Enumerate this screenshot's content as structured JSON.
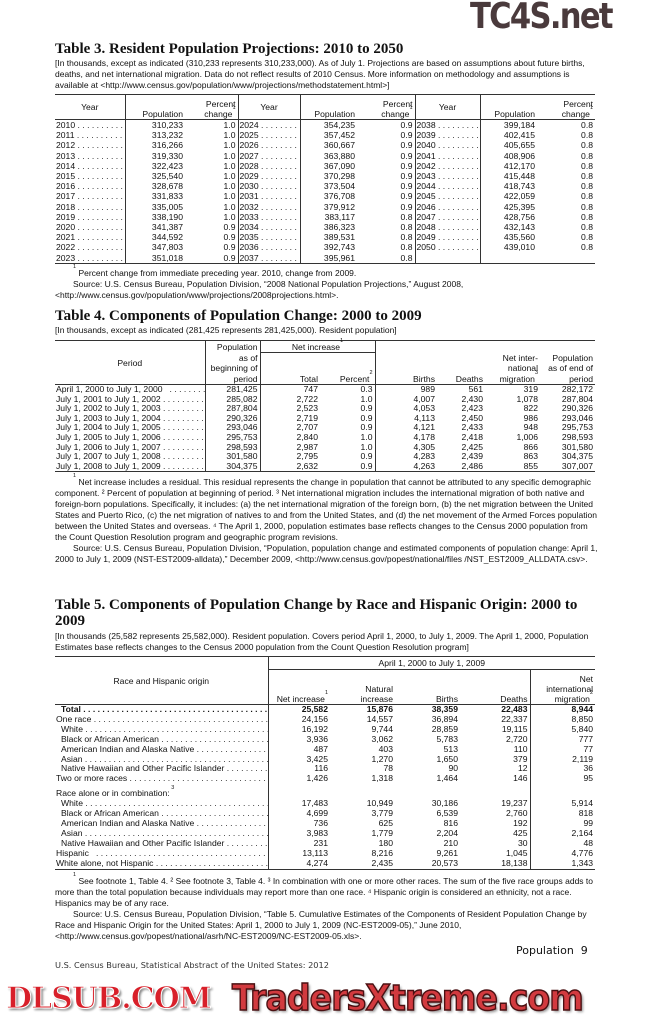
{
  "watermarks": {
    "top": "TC4S.net",
    "middle": "DLSUB.COM",
    "bottom": "TradersXtreme.com"
  },
  "table3": {
    "title": "Table 3. Resident Population Projections: 2010 to 2050",
    "subtitle": "[In thousands, except as indicated (310,233 represents 310,233,000). As of July 1. Projections are based on assumptions about future births, deaths, and net international migration. Data do not reflect results of 2010 Census. More information on methodology and assumptions is available at <http://www.census.gov/population/www/projections/methodstatement.html>]",
    "headers": {
      "year": "Year",
      "population": "Population",
      "percent": "Percent change",
      "fn": "1"
    },
    "rows": [
      [
        "2010",
        "310,233",
        "1.0",
        "2024",
        "354,235",
        "0.9",
        "2038",
        "399,184",
        "0.8"
      ],
      [
        "2011",
        "313,232",
        "1.0",
        "2025",
        "357,452",
        "0.9",
        "2039",
        "402,415",
        "0.8"
      ],
      [
        "2012",
        "316,266",
        "1.0",
        "2026",
        "360,667",
        "0.9",
        "2040",
        "405,655",
        "0.8"
      ],
      [
        "2013",
        "319,330",
        "1.0",
        "2027",
        "363,880",
        "0.9",
        "2041",
        "408,906",
        "0.8"
      ],
      [
        "2014",
        "322,423",
        "1.0",
        "2028",
        "367,090",
        "0.9",
        "2042",
        "412,170",
        "0.8"
      ],
      [
        "2015",
        "325,540",
        "1.0",
        "2029",
        "370,298",
        "0.9",
        "2043",
        "415,448",
        "0.8"
      ],
      [
        "2016",
        "328,678",
        "1.0",
        "2030",
        "373,504",
        "0.9",
        "2044",
        "418,743",
        "0.8"
      ],
      [
        "2017",
        "331,833",
        "1.0",
        "2031",
        "376,708",
        "0.9",
        "2045",
        "422,059",
        "0.8"
      ],
      [
        "2018",
        "335,005",
        "1.0",
        "2032",
        "379,912",
        "0.9",
        "2046",
        "425,395",
        "0.8"
      ],
      [
        "2019",
        "338,190",
        "1.0",
        "2033",
        "383,117",
        "0.8",
        "2047",
        "428,756",
        "0.8"
      ],
      [
        "2020",
        "341,387",
        "0.9",
        "2034",
        "386,323",
        "0.8",
        "2048",
        "432,143",
        "0.8"
      ],
      [
        "2021",
        "344,592",
        "0.9",
        "2035",
        "389,531",
        "0.8",
        "2049",
        "435,560",
        "0.8"
      ],
      [
        "2022",
        "347,803",
        "0.9",
        "2036",
        "392,743",
        "0.8",
        "2050",
        "439,010",
        "0.8"
      ],
      [
        "2023",
        "351,018",
        "0.9",
        "2037",
        "395,961",
        "0.8",
        "",
        "",
        ""
      ]
    ],
    "footnote": "Percent change from immediate preceding year. 2010, change from 2009.",
    "source": "Source: U.S. Census Bureau, Population Division, “2008 National Population Projections,” August 2008, <http://www.census.gov/population/www/projections/2008projections.html>."
  },
  "table4": {
    "title": "Table 4. Components of Population Change: 2000 to 2009",
    "subtitle": "[In thousands, except as indicated (281,425 represents 281,425,000). Resident population]",
    "headers": {
      "period": "Period",
      "pop_begin": "Population as of beginning of period",
      "net_increase": "Net increase",
      "total": "Total",
      "percent": "Percent",
      "births": "Births",
      "deaths": "Deaths",
      "net_migration": "Net inter- national migration",
      "pop_end": "Population as of end of period"
    },
    "rows": [
      [
        "April 1, 2000 to July 1, 2000",
        "281,425",
        "747",
        "0.3",
        "989",
        "561",
        "319",
        "282,172"
      ],
      [
        "July 1, 2001 to July 1, 2002",
        "285,082",
        "2,722",
        "1.0",
        "4,007",
        "2,430",
        "1,078",
        "287,804"
      ],
      [
        "July 1, 2002 to July 1, 2003",
        "287,804",
        "2,523",
        "0.9",
        "4,053",
        "2,423",
        "822",
        "290,326"
      ],
      [
        "July 1, 2003 to July 1, 2004",
        "290,326",
        "2,719",
        "0.9",
        "4,113",
        "2,450",
        "986",
        "293,046"
      ],
      [
        "July 1, 2004 to July 1, 2005",
        "293,046",
        "2,707",
        "0.9",
        "4,121",
        "2,433",
        "948",
        "295,753"
      ],
      [
        "July 1, 2005 to July 1, 2006",
        "295,753",
        "2,840",
        "1.0",
        "4,178",
        "2,418",
        "1,006",
        "298,593"
      ],
      [
        "July 1, 2006 to July 1, 2007",
        "298,593",
        "2,987",
        "1.0",
        "4,305",
        "2,425",
        "866",
        "301,580"
      ],
      [
        "July 1, 2007 to July 1, 2008",
        "301,580",
        "2,795",
        "0.9",
        "4,283",
        "2,439",
        "863",
        "304,375"
      ],
      [
        "July 1, 2008 to July 1, 2009",
        "304,375",
        "2,632",
        "0.9",
        "4,263",
        "2,486",
        "855",
        "307,007"
      ]
    ],
    "footnotes": "Net increase includes a residual. This residual represents the change in population that cannot be attributed to any specific demographic component. ² Percent of population at beginning of period. ³ Net international migration includes the international migration of both native and foreign-born populations. Specifically, it includes: (a) the net international migration of the foreign born, (b) the net migration between the United States and Puerto Rico, (c) the net migration of natives to and from the United States, and (d) the net movement of the Armed Forces population between the United States and overseas. ⁴ The April 1, 2000, population estimates base reflects changes to the Census 2000 population from the Count Question Resolution program and geographic program revisions.",
    "source": "Source: U.S. Census Bureau, Population Division, “Population, population change and estimated components of population change: April 1, 2000 to July 1, 2009 (NST-EST2009-alldata),” December 2009, <http://www.census.gov/popest/national/files /NST_EST2009_ALLDATA.csv>."
  },
  "table5": {
    "title": "Table 5. Components of Population Change by Race and Hispanic Origin: 2000 to 2009",
    "subtitle": "[In thousands (25,582 represents 25,582,000). Resident population. Covers period April 1, 2000, to July 1, 2009. The April 1, 2000, Population Estimates base reflects changes to the Census 2000 population from the Count Question Resolution program]",
    "headers": {
      "race": "Race and Hispanic origin",
      "span": "April 1, 2000 to July 1, 2009",
      "net_increase": "Net increase",
      "natural": "Natural increase",
      "births": "Births",
      "deaths": "Deaths",
      "net_migration": "Net international migration"
    },
    "rows": [
      {
        "label": "Total",
        "values": [
          "25,582",
          "15,876",
          "38,359",
          "22,483",
          "8,944"
        ],
        "bold": true,
        "indent": 1
      },
      {
        "label": "One race",
        "values": [
          "24,156",
          "14,557",
          "36,894",
          "22,337",
          "8,850"
        ],
        "indent": 0
      },
      {
        "label": "White",
        "values": [
          "16,192",
          "9,744",
          "28,859",
          "19,115",
          "5,840"
        ],
        "indent": 1
      },
      {
        "label": "Black or African American",
        "values": [
          "3,936",
          "3,062",
          "5,783",
          "2,720",
          "777"
        ],
        "indent": 1
      },
      {
        "label": "American Indian and Alaska Native",
        "values": [
          "487",
          "403",
          "513",
          "110",
          "77"
        ],
        "indent": 1
      },
      {
        "label": "Asian",
        "values": [
          "3,425",
          "1,270",
          "1,650",
          "379",
          "2,119"
        ],
        "indent": 1
      },
      {
        "label": "Native Hawaiian and Other Pacific Islander",
        "values": [
          "116",
          "78",
          "90",
          "12",
          "36"
        ],
        "indent": 1
      },
      {
        "label": "Two or more races",
        "values": [
          "1,426",
          "1,318",
          "1,464",
          "146",
          "95"
        ],
        "indent": 0
      },
      {
        "label": "Race alone or in combination:",
        "values": [
          "",
          "",
          "",
          "",
          ""
        ],
        "indent": 0,
        "heading": true,
        "fn": "3"
      },
      {
        "label": "White",
        "values": [
          "17,483",
          "10,949",
          "30,186",
          "19,237",
          "5,914"
        ],
        "indent": 1
      },
      {
        "label": "Black or African American",
        "values": [
          "4,699",
          "3,779",
          "6,539",
          "2,760",
          "818"
        ],
        "indent": 1
      },
      {
        "label": "American Indian and Alaska Native",
        "values": [
          "736",
          "625",
          "816",
          "192",
          "99"
        ],
        "indent": 1
      },
      {
        "label": "Asian",
        "values": [
          "3,983",
          "1,779",
          "2,204",
          "425",
          "2,164"
        ],
        "indent": 1
      },
      {
        "label": "Native Hawaiian and Other Pacific Islander",
        "values": [
          "231",
          "180",
          "210",
          "30",
          "48"
        ],
        "indent": 1
      },
      {
        "label": "Hispanic",
        "values": [
          "13,113",
          "8,216",
          "9,261",
          "1,045",
          "4,776"
        ],
        "indent": 0,
        "fn": "4"
      },
      {
        "label": "White alone, not Hispanic",
        "values": [
          "4,274",
          "2,435",
          "20,573",
          "18,138",
          "1,343"
        ],
        "indent": 0
      }
    ],
    "footnotes": "See footnote 1, Table 4. ² See footnote 3, Table 4. ³ In combination with one or more other races. The sum of the five race groups adds to more than the total population because individuals may report more than one race. ⁴ Hispanic origin is considered an ethnicity, not a race. Hispanics may be of any race.",
    "source": "Source: U.S. Census Bureau, Population Division, “Table 5. Cumulative Estimates of the Components of Resident Population Change by Race and Hispanic Origin for the United States: April 1, 2000 to July 1, 2009 (NC-EST2009-05),” June 2010, <http://www.census.gov/popest/national/asrh/NC-EST2009/NC-EST2009-05.xls>."
  },
  "footer": {
    "section": "Population",
    "page": "9",
    "source": "U.S. Census Bureau, Statistical Abstract of the United States: 2012"
  }
}
